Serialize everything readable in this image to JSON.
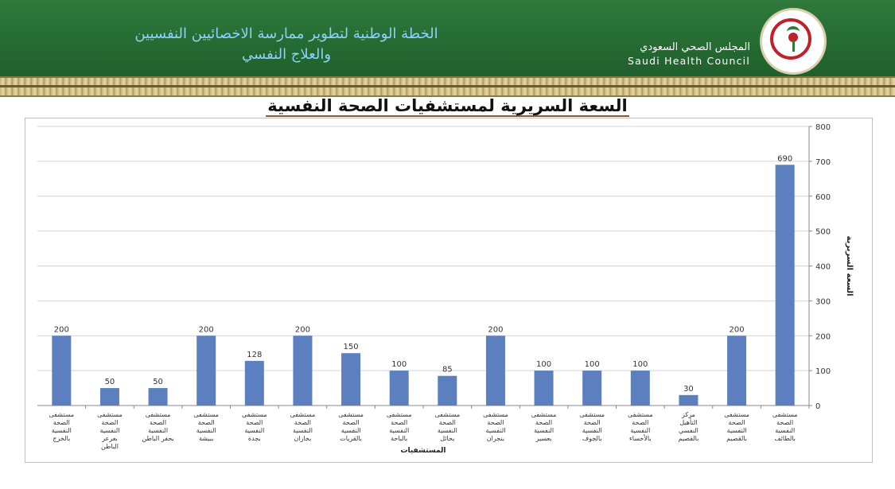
{
  "header": {
    "title_line1": "الخطة الوطنية لتطوير ممارسة الاخصائيين النفسيين",
    "title_line2": "والعلاج النفسي",
    "council_ar": "المجلس الصحي السعودي",
    "council_en": "Saudi Health Council",
    "logo_text": "Saudi Health Council",
    "colors": {
      "banner": "#2a7236",
      "title": "#8fd0ff"
    }
  },
  "chart_data": {
    "type": "bar",
    "title": "السعة السريرية لمستشفيات الصحة النفسية",
    "xlabel": "المستشفيات",
    "ylabel": "السعة السريرية",
    "ylim": [
      0,
      800
    ],
    "yticks": [
      0,
      100,
      200,
      300,
      400,
      500,
      600,
      700,
      800
    ],
    "y_axis_side": "right",
    "grid": true,
    "bar_color": "#5b7fbf",
    "categories": [
      "مستشفى الصحة النفسية بالخرج",
      "مستشفى الصحة النفسية بعرعر الباطن",
      "مستشفى الصحة النفسية بحفر الباطن",
      "مستشفى الصحة النفسية ببيشة",
      "مستشفى الصحة النفسية بجدة",
      "مستشفى الصحة النفسية بجازان",
      "مستشفى الصحة النفسية بالقريات",
      "مستشفى الصحة النفسية بالباحة",
      "مستشفى الصحة النفسية بحائل",
      "مستشفى الصحة النفسية بنجران",
      "مستشفى الصحة النفسية بعسير",
      "مستشفى الصحة النفسية بالجوف",
      "مستشفى الصحة النفسية بالأحساء",
      "مركز التأهيل النفسي بالقصيم",
      "مستشفى الصحة النفسية بالقصيم",
      "مستشفى الصحة النفسية بالطائف"
    ],
    "values": [
      200,
      50,
      50,
      200,
      128,
      200,
      150,
      100,
      85,
      200,
      100,
      100,
      100,
      30,
      200,
      690
    ]
  }
}
